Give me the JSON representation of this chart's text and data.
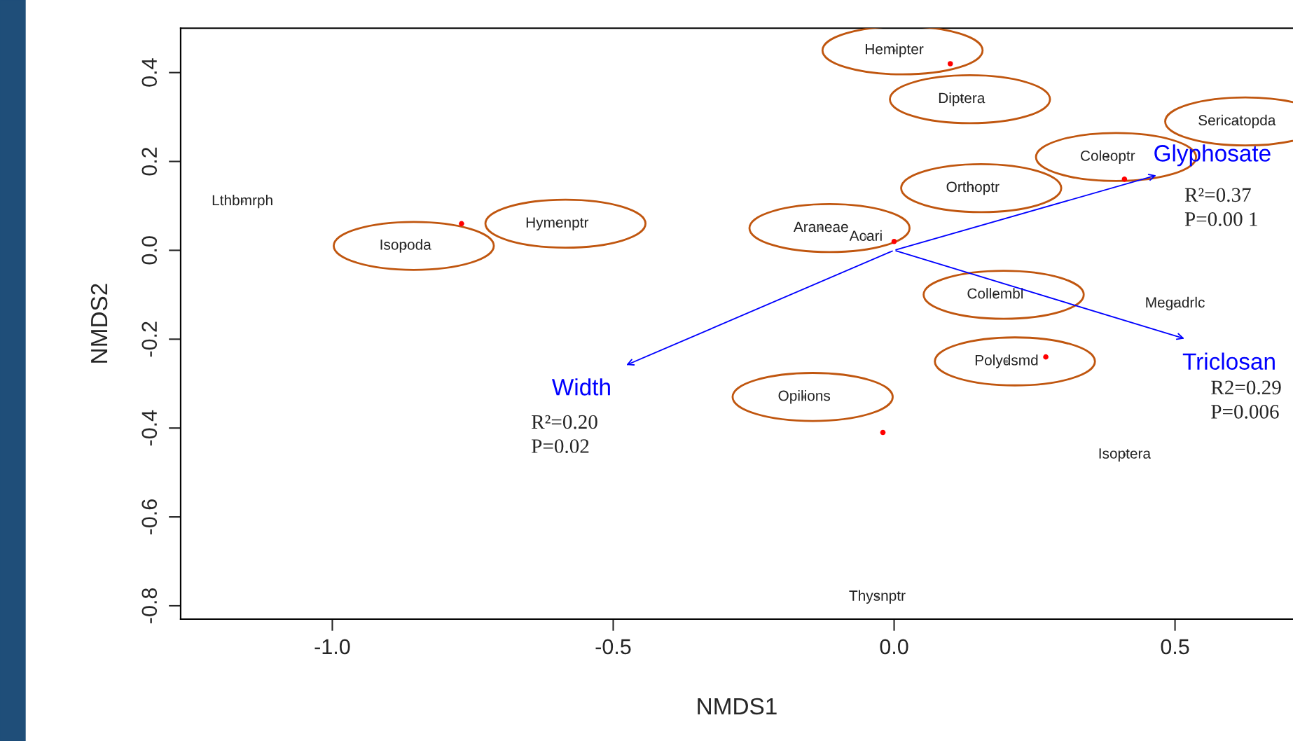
{
  "chart_data": {
    "type": "scatter",
    "xlabel": "NMDS1",
    "ylabel": "NMDS2",
    "xlim": [
      -1.27,
      0.71
    ],
    "ylim": [
      -0.83,
      0.5
    ],
    "xticks": [
      {
        "value": -1.0,
        "label": "-1.0"
      },
      {
        "value": -0.5,
        "label": "-0.5"
      },
      {
        "value": 0.0,
        "label": "0.0"
      },
      {
        "value": 0.5,
        "label": "0.5"
      }
    ],
    "yticks": [
      {
        "value": 0.4,
        "label": "0.4"
      },
      {
        "value": 0.2,
        "label": "0.2"
      },
      {
        "value": 0.0,
        "label": "0.0"
      },
      {
        "value": -0.2,
        "label": "-0.2"
      },
      {
        "value": -0.4,
        "label": "-0.4"
      },
      {
        "value": -0.6,
        "label": "-0.6"
      },
      {
        "value": -0.8,
        "label": "-0.8"
      }
    ],
    "grid": false,
    "marker": "circle",
    "series": [
      {
        "color": "#ff0000",
        "x": [
          0.1,
          -0.77,
          0.0,
          0.41,
          0.27,
          -0.02
        ],
        "values": [
          0.42,
          0.06,
          0.02,
          0.16,
          -0.24,
          -0.41
        ]
      },
      {
        "color": "#999999",
        "x": [
          0.0,
          0.12,
          0.61,
          0.38,
          0.14,
          -0.6,
          -0.87,
          -0.13,
          0.18,
          0.2,
          -0.16,
          -1.16,
          -0.05,
          0.5,
          0.41,
          -0.03
        ],
        "values": [
          0.45,
          0.34,
          0.29,
          0.21,
          0.14,
          0.06,
          0.01,
          0.05,
          -0.1,
          -0.25,
          -0.33,
          0.11,
          0.03,
          -0.12,
          -0.46,
          -0.78
        ],
        "value_labels": [
          "Hemipter",
          "Diptera",
          "Sericatopda",
          "Coleoptr",
          "Orthoptr",
          "Hymenptr",
          "Isopoda",
          "Araneae",
          "Collembl",
          "Polydsmd",
          "Opilions",
          "Lthbmrph",
          "Acari",
          "Megadrlc",
          "Isoptera",
          "Thysnptr"
        ]
      }
    ],
    "annotations": [
      "Glyphosate",
      "Width",
      "Triclosan",
      "R²=0.37\nP=0.00 1",
      "R²=0.20\nP=0.02",
      "R2=0.29\nP=0.006"
    ]
  }
}
